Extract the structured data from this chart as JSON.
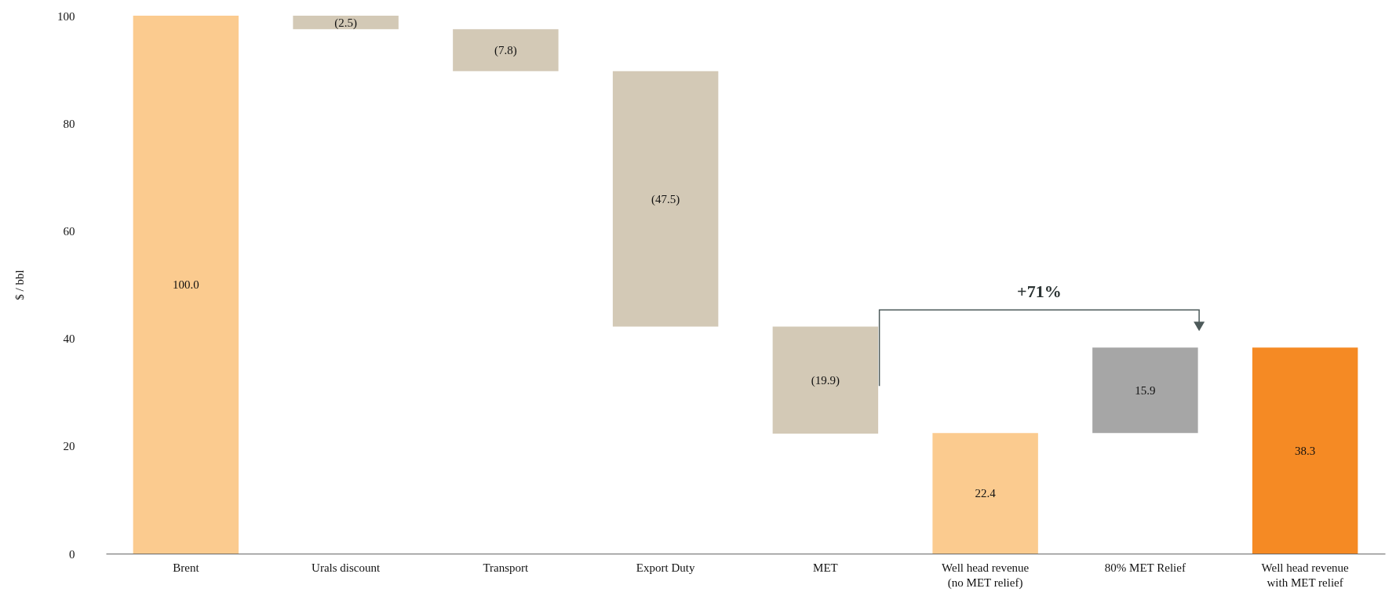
{
  "chart_data": {
    "type": "bar",
    "ylabel": "$ / bbl",
    "categories": [
      "Brent",
      "Urals discount",
      "Transport",
      "Export Duty",
      "MET",
      "Well head revenue\n(no MET relief)",
      "80% MET Relief",
      "Well head revenue\nwith MET relief"
    ],
    "values": [
      100.0,
      -2.5,
      -7.8,
      -47.5,
      -19.9,
      22.4,
      15.9,
      38.3
    ],
    "base": [
      0,
      100.0,
      97.5,
      89.7,
      42.2,
      0,
      22.4,
      0
    ],
    "value_labels": [
      "100.0",
      "(2.5)",
      "(7.8)",
      "(47.5)",
      "(19.9)",
      "22.4",
      "15.9",
      "38.3"
    ],
    "colors": [
      "#fbcb8f",
      "#d3c9b6",
      "#d3c9b6",
      "#d3c9b6",
      "#d3c9b6",
      "#fbcb8f",
      "#a6a6a6",
      "#f58a24"
    ],
    "ylim": [
      0,
      100
    ],
    "yticks": [
      0,
      20,
      40,
      60,
      80,
      100
    ],
    "grid": false,
    "annotations": [
      "+71%"
    ]
  }
}
